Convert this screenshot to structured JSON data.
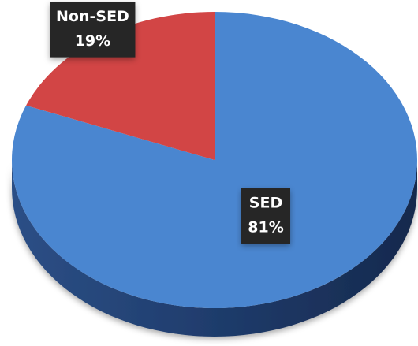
{
  "chart_data": {
    "type": "pie",
    "categories": [
      "SED",
      "Non-SED"
    ],
    "values": [
      81,
      19
    ],
    "value_labels": [
      "81%",
      "19%"
    ],
    "colors": [
      "#4a86d0",
      "#d24545"
    ]
  }
}
